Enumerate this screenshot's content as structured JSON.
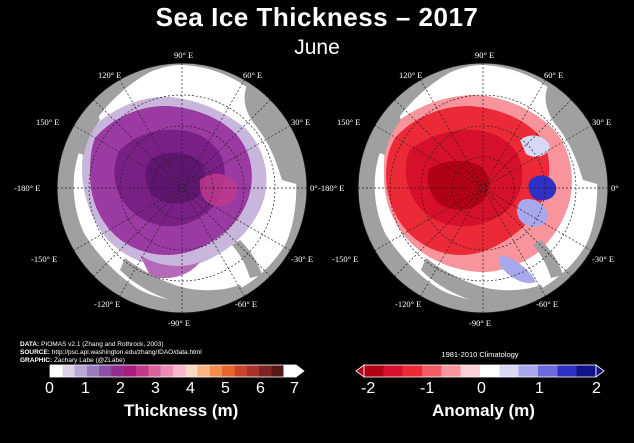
{
  "title": "Sea Ice Thickness – 2017",
  "subtitle": "June",
  "maps": [
    {
      "id": "thickness",
      "lon_labels": [
        "90° E",
        "120° E",
        "60° E",
        "150° E",
        "30° E",
        "-180° E",
        "0°",
        "-150° E",
        "-30° E",
        "-120° E",
        "-60° E",
        "-90° E"
      ]
    },
    {
      "id": "anomaly",
      "lon_labels": [
        "90° E",
        "120° E",
        "60° E",
        "150° E",
        "30° E",
        "-180° E",
        "0°",
        "-150° E",
        "-30° E",
        "-120° E",
        "-60° E",
        "-90° E"
      ]
    }
  ],
  "credits": {
    "data_label": "DATA:",
    "data_value": "PIOMAS v2.1 (Zhang and Rothrock, 2003)",
    "source_label": "SOURCE:",
    "source_value": "http://psc.apl.washington.edu/zhang/IDAO/data.html",
    "graphic_label": "GRAPHIC:",
    "graphic_value": "Zachary Labe (@ZLabe)"
  },
  "colorbars": {
    "thickness": {
      "label": "Thickness (m)",
      "ticks": [
        "0",
        "1",
        "2",
        "3",
        "4",
        "5",
        "6",
        "7"
      ],
      "colors": [
        "#ffffff",
        "#dcd3ea",
        "#b9a7d4",
        "#9a7bbd",
        "#8a4fa6",
        "#922e8f",
        "#a71f7e",
        "#c2398a",
        "#d9619c",
        "#ea8db4",
        "#f5b7c9",
        "#fcd7c2",
        "#fbb47e",
        "#f58c4a",
        "#e8662e",
        "#c9452a",
        "#a8312a",
        "#7f2424",
        "#5a1717",
        "#ffffff"
      ]
    },
    "anomaly": {
      "label": "Anomaly (m)",
      "climatology": "1981-2010 Climatology",
      "ticks": [
        "-2",
        "-1",
        "0",
        "1",
        "2"
      ],
      "colors": [
        "#b10014",
        "#d6102a",
        "#ec2937",
        "#f35a64",
        "#f8959c",
        "#fcd0d4",
        "#ffffff",
        "#d8d8f5",
        "#a8a8ec",
        "#6b6bdf",
        "#3030c4",
        "#12128a"
      ]
    }
  },
  "colors": {
    "land": "#a0a0a0",
    "ocean": "#ffffff",
    "purple_dark": "#7a1f86",
    "purple_mid": "#9b3aa3",
    "red_dark": "#d31020",
    "red_mid": "#ee2a36",
    "pink": "#f7a2ab",
    "blue": "#1f1fb0"
  }
}
